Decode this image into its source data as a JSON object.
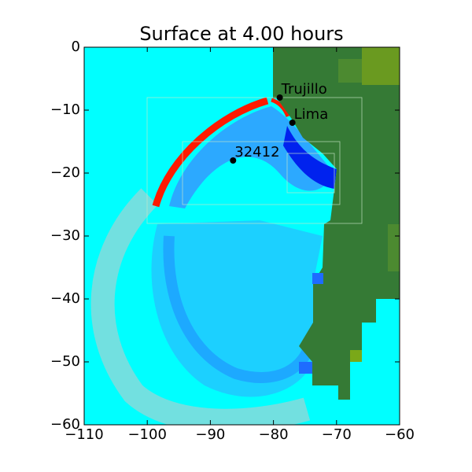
{
  "chart_data": {
    "type": "scatter",
    "title": "Surface at 4.00 hours",
    "x": [
      -79,
      -77,
      -86.4
    ],
    "y": [
      -8,
      -12,
      -18
    ],
    "point_labels": [
      "Trujillo",
      "Lima",
      "32412"
    ],
    "color": "#000000",
    "xlim": [
      -110,
      -60
    ],
    "ylim": [
      -60,
      0
    ],
    "xticks": [
      {
        "value": -110,
        "label": "−110"
      },
      {
        "value": -100,
        "label": "−100"
      },
      {
        "value": -90,
        "label": "−90"
      },
      {
        "value": -80,
        "label": "−80"
      },
      {
        "value": -70,
        "label": "−70"
      },
      {
        "value": -60,
        "label": "−60"
      }
    ],
    "yticks": [
      0,
      {
        "value": -10,
        "label": "−10"
      },
      {
        "value": -20,
        "label": "−20"
      },
      {
        "value": -30,
        "label": "−30"
      },
      {
        "value": -40,
        "label": "−40"
      },
      {
        "value": -50,
        "label": "−50"
      },
      {
        "value": -60,
        "label": "−60"
      }
    ]
  }
}
